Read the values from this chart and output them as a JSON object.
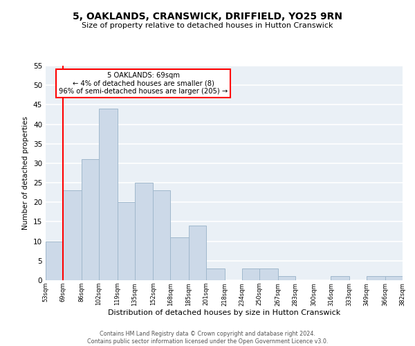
{
  "title": "5, OAKLANDS, CRANSWICK, DRIFFIELD, YO25 9RN",
  "subtitle": "Size of property relative to detached houses in Hutton Cranswick",
  "xlabel": "Distribution of detached houses by size in Hutton Cranswick",
  "ylabel": "Number of detached properties",
  "bar_color": "#ccd9e8",
  "bar_edge_color": "#a0b8cc",
  "background_color": "#eaf0f6",
  "grid_color": "white",
  "annotation_line_color": "red",
  "annotation_text_line1": "5 OAKLANDS: 69sqm",
  "annotation_text_line2": "← 4% of detached houses are smaller (8)",
  "annotation_text_line3": "96% of semi-detached houses are larger (205) →",
  "annotation_box_color": "white",
  "annotation_box_edge": "red",
  "footer_line1": "Contains HM Land Registry data © Crown copyright and database right 2024.",
  "footer_line2": "Contains public sector information licensed under the Open Government Licence v3.0.",
  "bins": [
    53,
    69,
    86,
    102,
    119,
    135,
    152,
    168,
    185,
    201,
    218,
    234,
    250,
    267,
    283,
    300,
    316,
    333,
    349,
    366,
    382
  ],
  "counts": [
    10,
    23,
    31,
    44,
    20,
    25,
    23,
    11,
    14,
    3,
    0,
    3,
    3,
    1,
    0,
    0,
    1,
    0,
    1,
    1
  ],
  "property_size": 69,
  "ylim": [
    0,
    55
  ],
  "yticks": [
    0,
    5,
    10,
    15,
    20,
    25,
    30,
    35,
    40,
    45,
    50,
    55
  ]
}
